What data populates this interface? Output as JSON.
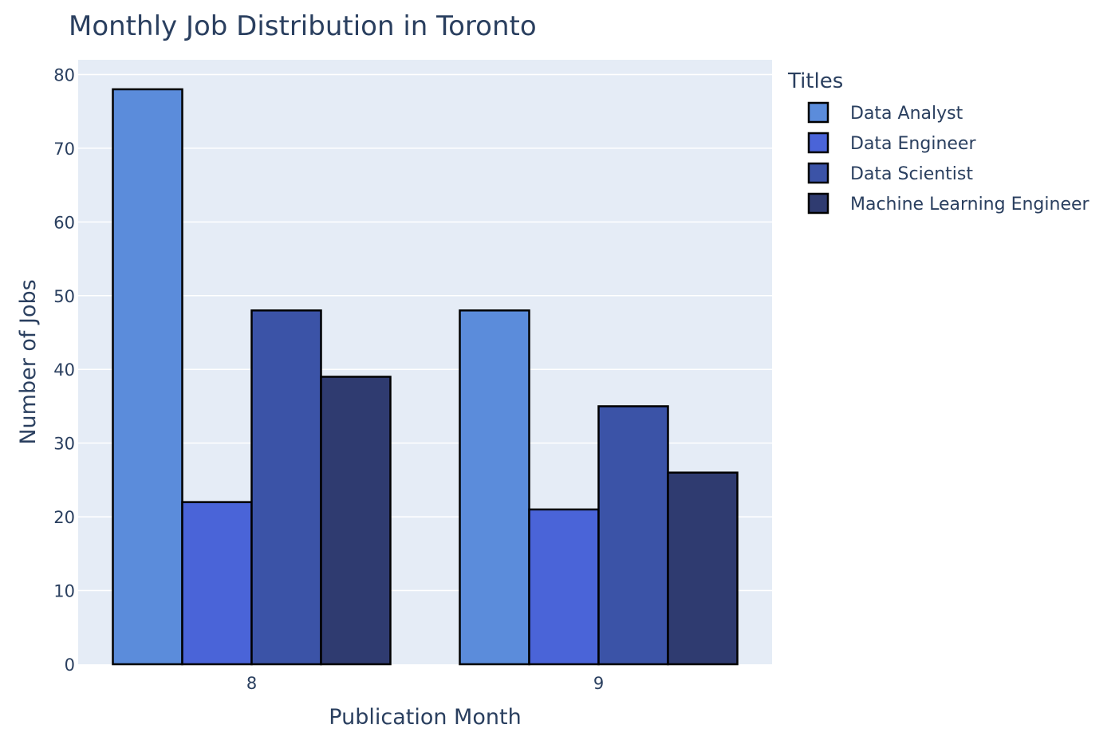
{
  "chart_data": {
    "type": "bar",
    "title": "Monthly Job Distribution in Toronto",
    "xlabel": "Publication Month",
    "ylabel": "Number of Jobs",
    "categories": [
      "8",
      "9"
    ],
    "series": [
      {
        "name": "Data Analyst",
        "values": [
          78,
          48
        ],
        "color": "#5b8cdb"
      },
      {
        "name": "Data Engineer",
        "values": [
          22,
          21
        ],
        "color": "#4a64d8"
      },
      {
        "name": "Data Scientist",
        "values": [
          48,
          35
        ],
        "color": "#3b53a7"
      },
      {
        "name": "Machine Learning Engineer",
        "values": [
          39,
          26
        ],
        "color": "#2f3b70"
      }
    ],
    "ylim": [
      0,
      82
    ],
    "yticks": [
      0,
      10,
      20,
      30,
      40,
      50,
      60,
      70,
      80
    ],
    "grid": true,
    "legend": {
      "title": "Titles",
      "placement": "right"
    },
    "plot_background": "#e5ecf6",
    "bar_outline": "#000000"
  }
}
